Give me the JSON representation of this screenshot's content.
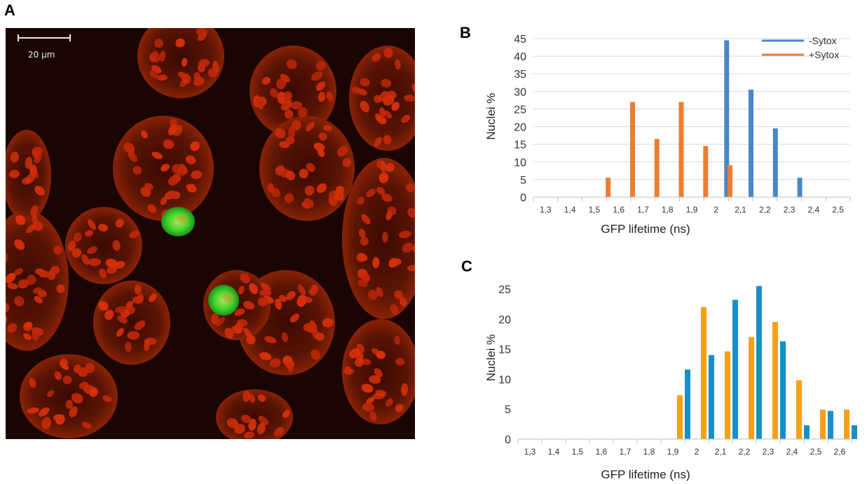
{
  "panels": {
    "a": "A",
    "b": "B",
    "c": "C"
  },
  "micrograph": {
    "scale_bar_label": "20 µm"
  },
  "chart_data": [
    {
      "type": "bar",
      "title": "",
      "xlabel": "GFP lifetime (ns)",
      "ylabel": "Nuclei %",
      "ylim": [
        0,
        45
      ],
      "yticks": [
        0,
        5,
        10,
        15,
        20,
        25,
        30,
        35,
        40,
        45
      ],
      "grid": true,
      "legend_position": "top-right",
      "categories": [
        "1,3",
        "1,4",
        "1,5",
        "1,6",
        "1,7",
        "1,8",
        "1,9",
        "2",
        "2,1",
        "2,2",
        "2,3",
        "2,4",
        "2,5"
      ],
      "series": [
        {
          "name": "-Sytox",
          "color": "#4a86c8",
          "values": [
            0,
            0,
            0,
            0,
            0,
            0,
            0,
            44.5,
            30.5,
            19.5,
            5.5,
            0,
            0
          ]
        },
        {
          "name": "+Sytox",
          "color": "#ed7d31",
          "values": [
            0,
            0,
            0,
            5.5,
            27,
            16.5,
            27,
            14.5,
            9,
            0,
            0,
            0,
            0
          ]
        }
      ]
    },
    {
      "type": "bar",
      "title": "",
      "xlabel": "GFP lifetime (ns)",
      "ylabel": "Nuclei %",
      "ylim": [
        0,
        25
      ],
      "yticks": [
        0,
        5,
        10,
        15,
        20,
        25
      ],
      "grid": false,
      "categories": [
        "1,3",
        "1,4",
        "1,5",
        "1,6",
        "1,7",
        "1,8",
        "1,9",
        "2",
        "2,1",
        "2,2",
        "2,3",
        "2,4",
        "2,5",
        "2,6"
      ],
      "series": [
        {
          "color": "#f5a01a",
          "values": [
            0,
            0,
            0,
            0,
            0,
            0,
            7.3,
            22,
            14.6,
            17,
            19.5,
            9.8,
            4.9,
            4.9
          ]
        },
        {
          "color": "#1a8fc7",
          "values": [
            0,
            0,
            0,
            0,
            0,
            0,
            11.6,
            14,
            23.2,
            25.5,
            16.3,
            2.3,
            4.7,
            2.3
          ]
        }
      ]
    }
  ]
}
